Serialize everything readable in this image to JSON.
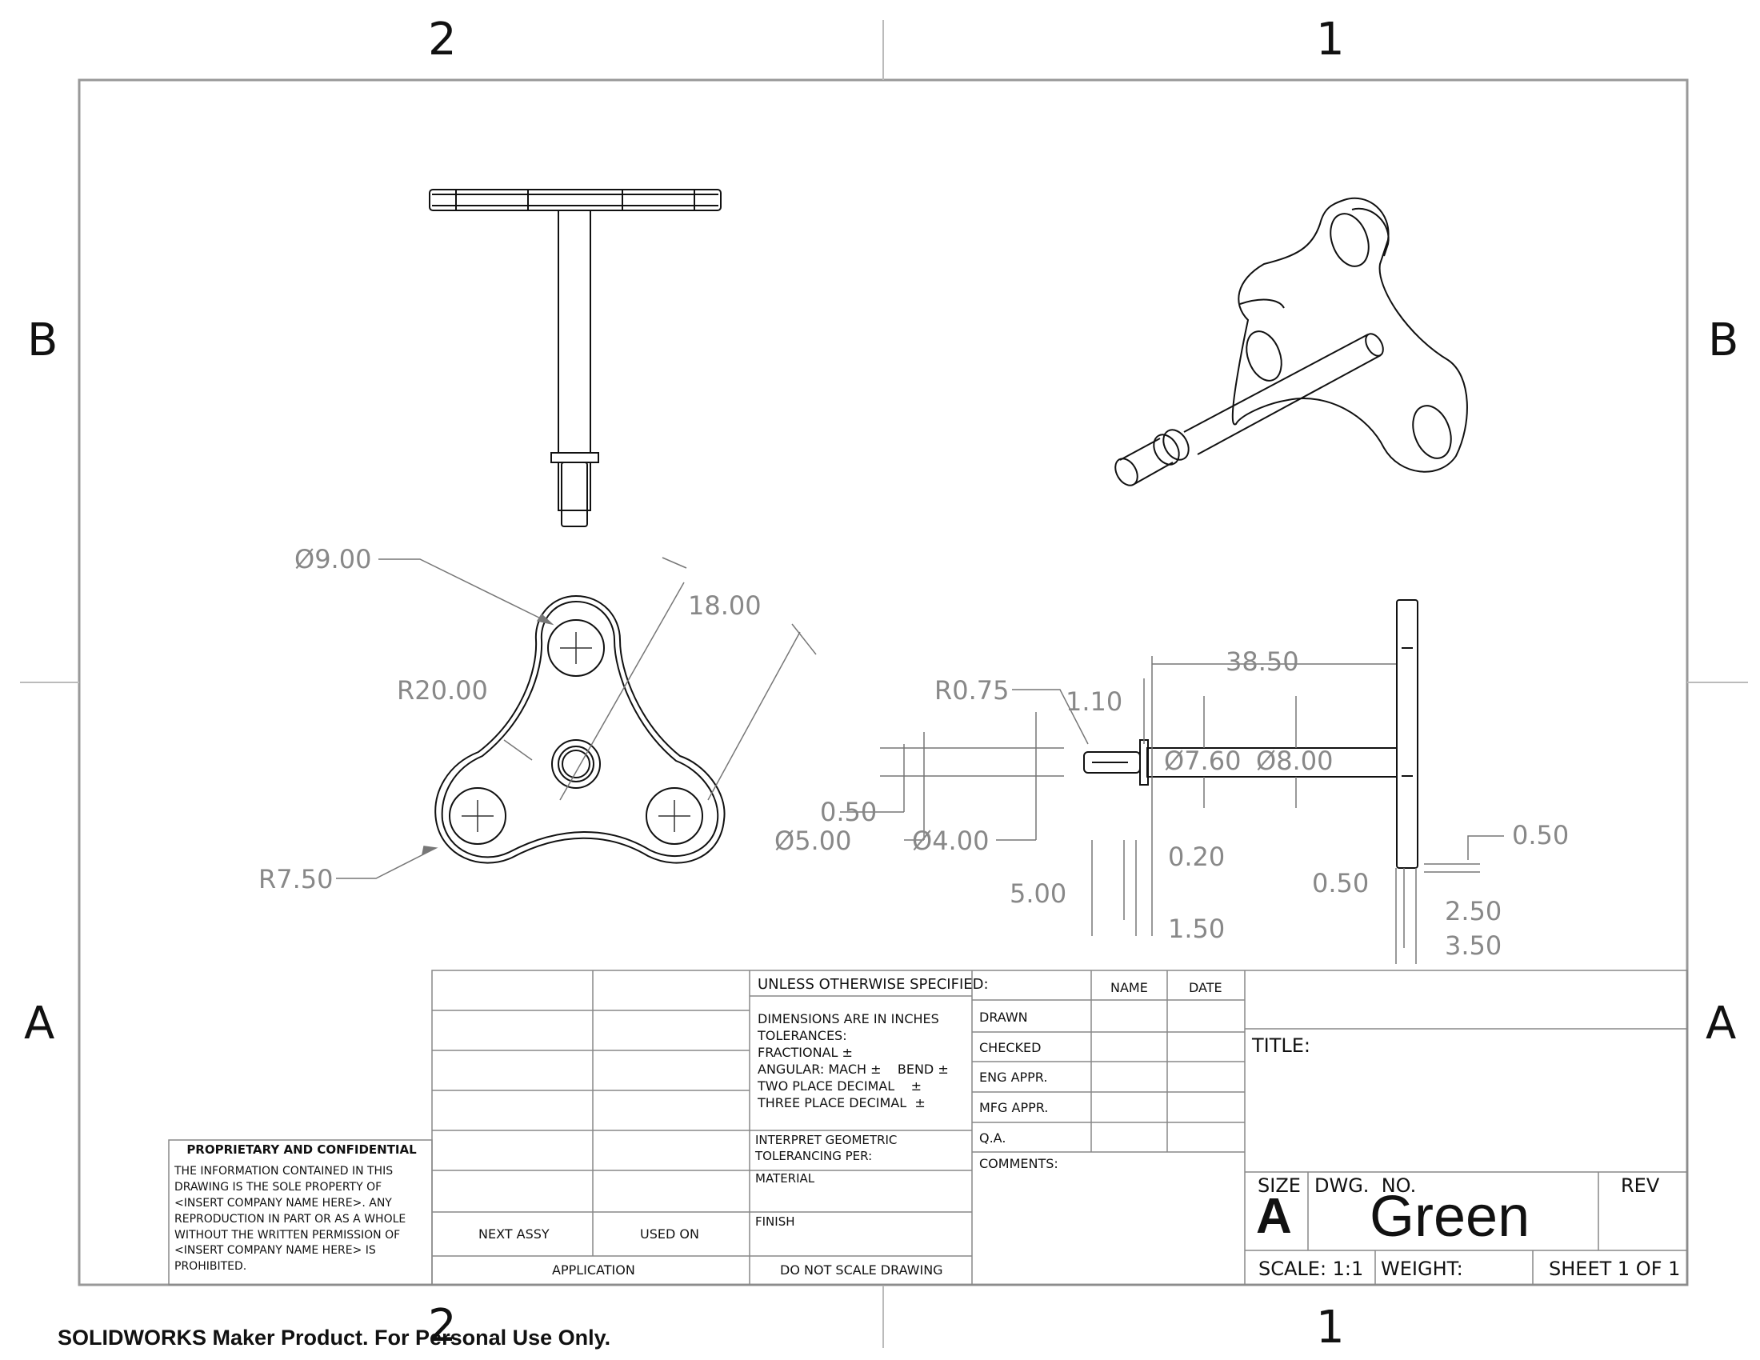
{
  "zones": {
    "top_left": "2",
    "top_right": "1",
    "bottom_left": "2",
    "bottom_right": "1",
    "left_top": "B",
    "left_bottom": "A",
    "right_top": "B",
    "right_bottom": "A"
  },
  "dimensions": {
    "dia_hole": "Ø9.00",
    "hole_spacing": "18.00",
    "lobe_radius": "R20.00",
    "corner_radius": "R7.50",
    "fillet": "R0.75",
    "d_1_10": "1.10",
    "length": "38.50",
    "dia_7_60": "Ø7.60",
    "dia_8_00": "Ø8.00",
    "d_0_50_left": "0.50",
    "dia_5_00": "Ø5.00",
    "dia_4_00": "Ø4.00",
    "d_0_20": "0.20",
    "d_5_00": "5.00",
    "d_1_50": "1.50",
    "d_0_50_right_top": "0.50",
    "d_0_50_right": "0.50",
    "d_2_50": "2.50",
    "d_3_50": "3.50"
  },
  "title_block": {
    "confidential_title": "PROPRIETARY AND CONFIDENTIAL",
    "confidential_body": "THE INFORMATION CONTAINED IN THIS DRAWING IS THE SOLE PROPERTY OF <INSERT COMPANY NAME HERE>.  ANY REPRODUCTION IN PART OR AS A WHOLE WITHOUT THE WRITTEN PERMISSION OF <INSERT COMPANY NAME HERE> IS PROHIBITED.",
    "next_assy": "NEXT ASSY",
    "used_on": "USED ON",
    "application": "APPLICATION",
    "unless": "UNLESS OTHERWISE SPECIFIED:",
    "dims_inches": "DIMENSIONS ARE IN INCHES",
    "tolerances": "TOLERANCES:",
    "fractional": "FRACTIONAL ±",
    "angular": "ANGULAR: MACH ±    BEND ±",
    "two_place": "TWO PLACE DECIMAL    ±",
    "three_place": "THREE PLACE DECIMAL  ±",
    "interpret": "INTERPRET GEOMETRIC",
    "tolerancing": "TOLERANCING PER:",
    "material": "MATERIAL",
    "finish": "FINISH",
    "do_not_scale": "DO NOT SCALE DRAWING",
    "name": "NAME",
    "date": "DATE",
    "drawn": "DRAWN",
    "checked": "CHECKED",
    "eng_appr": "ENG APPR.",
    "mfg_appr": "MFG APPR.",
    "qa": "Q.A.",
    "comments": "COMMENTS:",
    "title": "TITLE:",
    "size": "SIZE",
    "size_value": "A",
    "dwg_no": "DWG.  NO.",
    "dwg_value": "Green",
    "rev": "REV",
    "scale": "SCALE: 1:1",
    "weight": "WEIGHT:",
    "sheet": "SHEET 1 OF 1"
  },
  "watermark": "SOLIDWORKS Maker Product. For Personal Use Only."
}
